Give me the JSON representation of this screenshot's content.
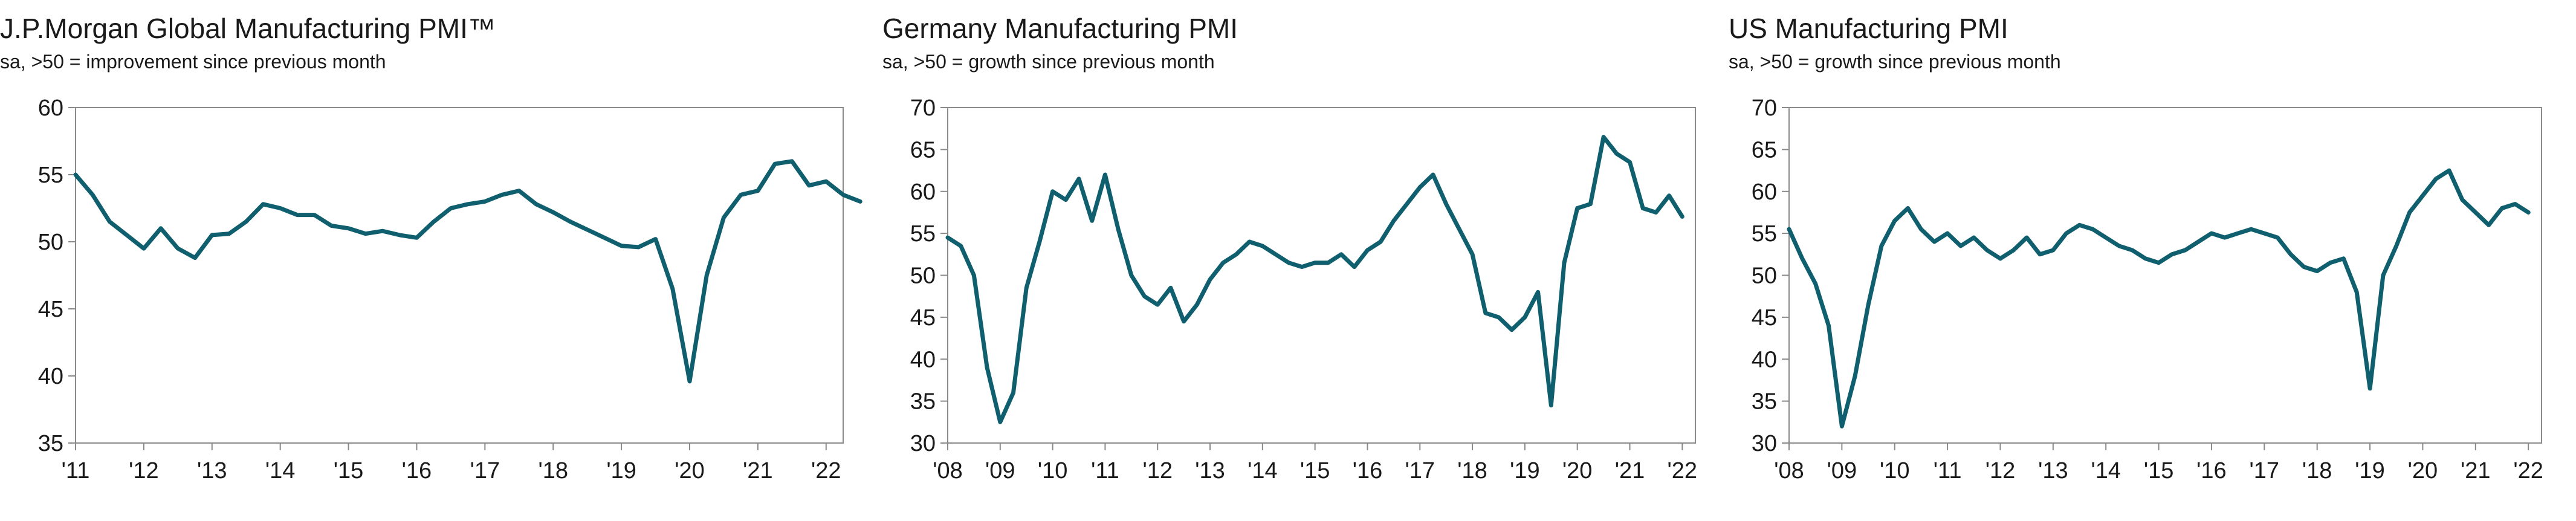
{
  "chart_data": [
    {
      "type": "line",
      "title": "J.P.Morgan Global Manufacturing PMI™",
      "subtitle": "sa, >50 = improvement since previous month",
      "xlabel": "",
      "ylabel": "",
      "ylim": [
        35,
        60
      ],
      "yticks": [
        "35",
        "40",
        "45",
        "50",
        "55",
        "60"
      ],
      "xticks": [
        "'11",
        "'12",
        "'13",
        "'14",
        "'15",
        "'16",
        "'17",
        "'18",
        "'19",
        "'20",
        "'21",
        "'22"
      ],
      "xlim": [
        2011.0,
        2022.25
      ],
      "grid": false,
      "color": "#0f5f6e",
      "series": [
        {
          "x_start": 2011.0,
          "step": 0.25,
          "values": [
            55.0,
            53.5,
            51.5,
            50.5,
            49.5,
            51.0,
            49.5,
            48.8,
            50.5,
            50.6,
            51.5,
            52.8,
            52.5,
            52.0,
            52.0,
            51.2,
            51.0,
            50.6,
            50.8,
            50.5,
            50.3,
            51.5,
            52.5,
            52.8,
            53.0,
            53.5,
            53.8,
            52.8,
            52.2,
            51.5,
            50.9,
            50.3,
            49.7,
            49.6,
            50.2,
            46.5,
            39.6,
            47.5,
            51.8,
            53.5,
            53.8,
            55.8,
            56.0,
            54.2,
            54.5,
            53.5,
            53.0
          ]
        }
      ]
    },
    {
      "type": "line",
      "title": "Germany Manufacturing PMI",
      "subtitle": "sa, >50 = growth since previous month",
      "xlabel": "",
      "ylabel": "",
      "ylim": [
        30,
        70
      ],
      "yticks": [
        "30",
        "35",
        "40",
        "45",
        "50",
        "55",
        "60",
        "65",
        "70"
      ],
      "xticks": [
        "'08",
        "'09",
        "'10",
        "'11",
        "'12",
        "'13",
        "'14",
        "'15",
        "'16",
        "'17",
        "'18",
        "'19",
        "'20",
        "'21",
        "'22"
      ],
      "xlim": [
        2008.0,
        2022.25
      ],
      "grid": false,
      "color": "#0f5f6e",
      "series": [
        {
          "x_start": 2008.0,
          "step": 0.25,
          "values": [
            54.5,
            53.5,
            50.0,
            39.0,
            32.5,
            36.0,
            48.5,
            54.0,
            60.0,
            59.0,
            61.5,
            56.5,
            62.0,
            55.5,
            50.0,
            47.5,
            46.5,
            48.5,
            44.5,
            46.5,
            49.5,
            51.5,
            52.5,
            54.0,
            53.5,
            52.5,
            51.5,
            51.0,
            51.5,
            51.5,
            52.5,
            51.0,
            53.0,
            54.0,
            56.5,
            58.5,
            60.5,
            62.0,
            58.5,
            55.5,
            52.5,
            45.5,
            45.0,
            43.5,
            45.0,
            48.0,
            34.5,
            51.5,
            58.0,
            58.5,
            66.5,
            64.5,
            63.5,
            58.0,
            57.5,
            59.5,
            57.0
          ]
        }
      ]
    },
    {
      "type": "line",
      "title": "US Manufacturing PMI",
      "subtitle": "sa, >50 = growth since previous month",
      "xlabel": "",
      "ylabel": "",
      "ylim": [
        30,
        70
      ],
      "yticks": [
        "30",
        "35",
        "40",
        "45",
        "50",
        "55",
        "60",
        "65",
        "70"
      ],
      "xticks": [
        "'08",
        "'09",
        "'10",
        "'11",
        "'12",
        "'13",
        "'14",
        "'15",
        "'16",
        "'17",
        "'18",
        "'19",
        "'20",
        "'21",
        "'22"
      ],
      "xlim": [
        2008.0,
        2022.25
      ],
      "grid": false,
      "color": "#0f5f6e",
      "series": [
        {
          "x_start": 2008.0,
          "step": 0.25,
          "values": [
            55.5,
            52.0,
            49.0,
            44.0,
            32.0,
            38.0,
            46.5,
            53.5,
            56.5,
            58.0,
            55.5,
            54.0,
            55.0,
            53.5,
            54.5,
            53.0,
            52.0,
            53.0,
            54.5,
            52.5,
            53.0,
            55.0,
            56.0,
            55.5,
            54.5,
            53.5,
            53.0,
            52.0,
            51.5,
            52.5,
            53.0,
            54.0,
            55.0,
            54.5,
            55.0,
            55.5,
            55.0,
            54.5,
            52.5,
            51.0,
            50.5,
            51.5,
            52.0,
            48.0,
            36.5,
            50.0,
            53.5,
            57.5,
            59.5,
            61.5,
            62.5,
            59.0,
            57.5,
            56.0,
            58.0,
            58.5,
            57.5
          ]
        }
      ]
    }
  ]
}
